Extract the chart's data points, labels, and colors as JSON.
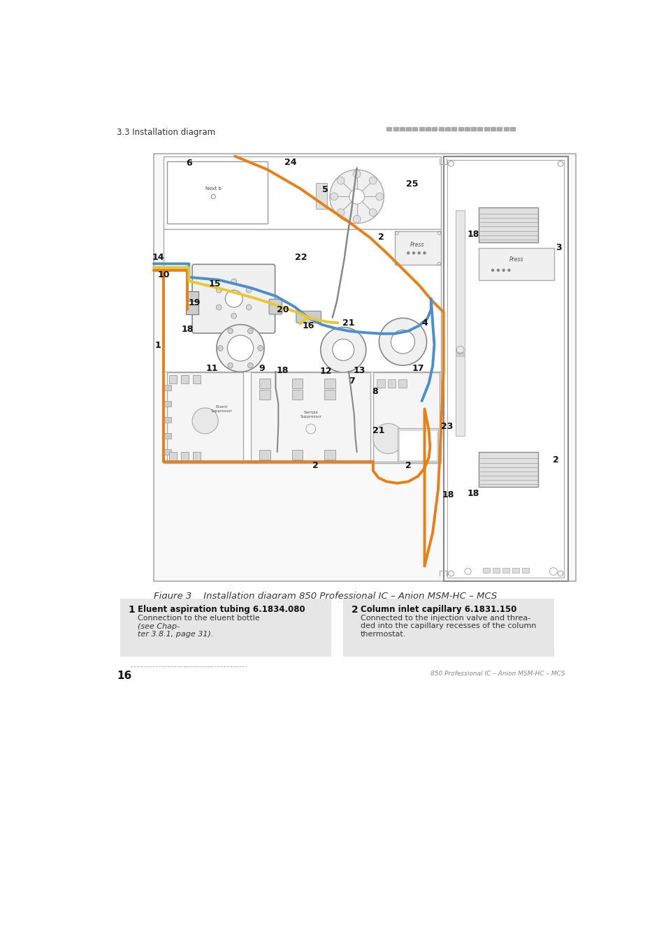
{
  "page_header_left": "3.3 Installation diagram",
  "figure_caption": "Figure 3    Installation diagram 850 Professional IC – Anion MSM-HC – MCS",
  "page_number": "16",
  "footer_right": "850 Professional IC – Anion MSM-HC – MCS",
  "box1_number": "1",
  "box1_title": "Eluent aspiration tubing 6.1834.080",
  "box1_text_normal": "Connection to the eluent bottle ",
  "box1_text_italic": "(see Chap-\nter 3.8.1, page 31).",
  "box2_number": "2",
  "box2_title": "Column inlet capillary 6.1831.150",
  "box2_text": "Connected to the injection valve and threa-\nded into the capillary recesses of the column\nthermostat.",
  "bg_color": "#ffffff",
  "box_bg": "#e6e6e6",
  "orange": "#E8801A",
  "blue": "#4A8FCC",
  "yellow": "#E8C832",
  "gray_line": "#888888",
  "dark_line": "#555555"
}
